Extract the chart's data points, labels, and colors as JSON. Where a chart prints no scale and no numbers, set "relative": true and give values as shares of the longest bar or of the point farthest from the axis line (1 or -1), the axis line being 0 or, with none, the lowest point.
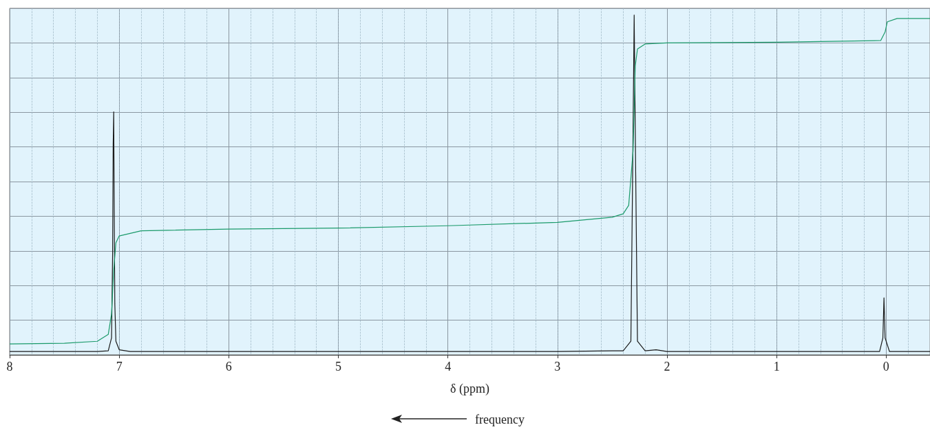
{
  "chart_data": {
    "type": "line",
    "relative": true,
    "xlabel": "δ (ppm)",
    "xlim": [
      8,
      -0.4
    ],
    "xticks": [
      8,
      7,
      6,
      5,
      4,
      3,
      2,
      1,
      0
    ],
    "grid": true,
    "marker": "none",
    "line_style": "solid",
    "annotations": [
      "frequency"
    ],
    "series": [
      {
        "color": "#1a1a1a",
        "x": [
          8,
          7.5,
          7.2,
          7.1,
          7.07,
          7.06,
          7.055,
          7.05,
          7.045,
          7.04,
          7.03,
          7.0,
          6.9,
          6,
          5,
          4,
          3,
          2.5,
          2.4,
          2.33,
          2.315,
          2.3,
          2.285,
          2.27,
          2.2,
          2.1,
          2.0,
          1,
          0.06,
          0.03,
          0.02,
          0.01,
          -0.03,
          -0.4
        ],
        "values": [
          0.01,
          0.01,
          0.01,
          0.012,
          0.05,
          0.3,
          0.62,
          0.715,
          0.4,
          0.15,
          0.04,
          0.015,
          0.01,
          0.01,
          0.01,
          0.01,
          0.01,
          0.012,
          0.012,
          0.04,
          0.5,
          1,
          0.5,
          0.04,
          0.012,
          0.015,
          0.01,
          0.01,
          0.01,
          0.05,
          0.168,
          0.05,
          0.01,
          0.01
        ]
      },
      {
        "color": "#1a9a6a",
        "x": [
          8,
          7.5,
          7.2,
          7.1,
          7.07,
          7.05,
          7.03,
          7.0,
          6.8,
          6,
          5,
          4,
          3,
          2.5,
          2.4,
          2.35,
          2.31,
          2.29,
          2.27,
          2.2,
          2,
          1,
          0.05,
          0.01,
          -0.01,
          -0.1,
          -0.4
        ],
        "values": [
          0.032,
          0.034,
          0.04,
          0.06,
          0.12,
          0.25,
          0.33,
          0.35,
          0.365,
          0.37,
          0.373,
          0.38,
          0.39,
          0.405,
          0.415,
          0.44,
          0.6,
          0.85,
          0.9,
          0.915,
          0.918,
          0.92,
          0.925,
          0.95,
          0.98,
          0.99,
          0.99
        ]
      }
    ]
  }
}
